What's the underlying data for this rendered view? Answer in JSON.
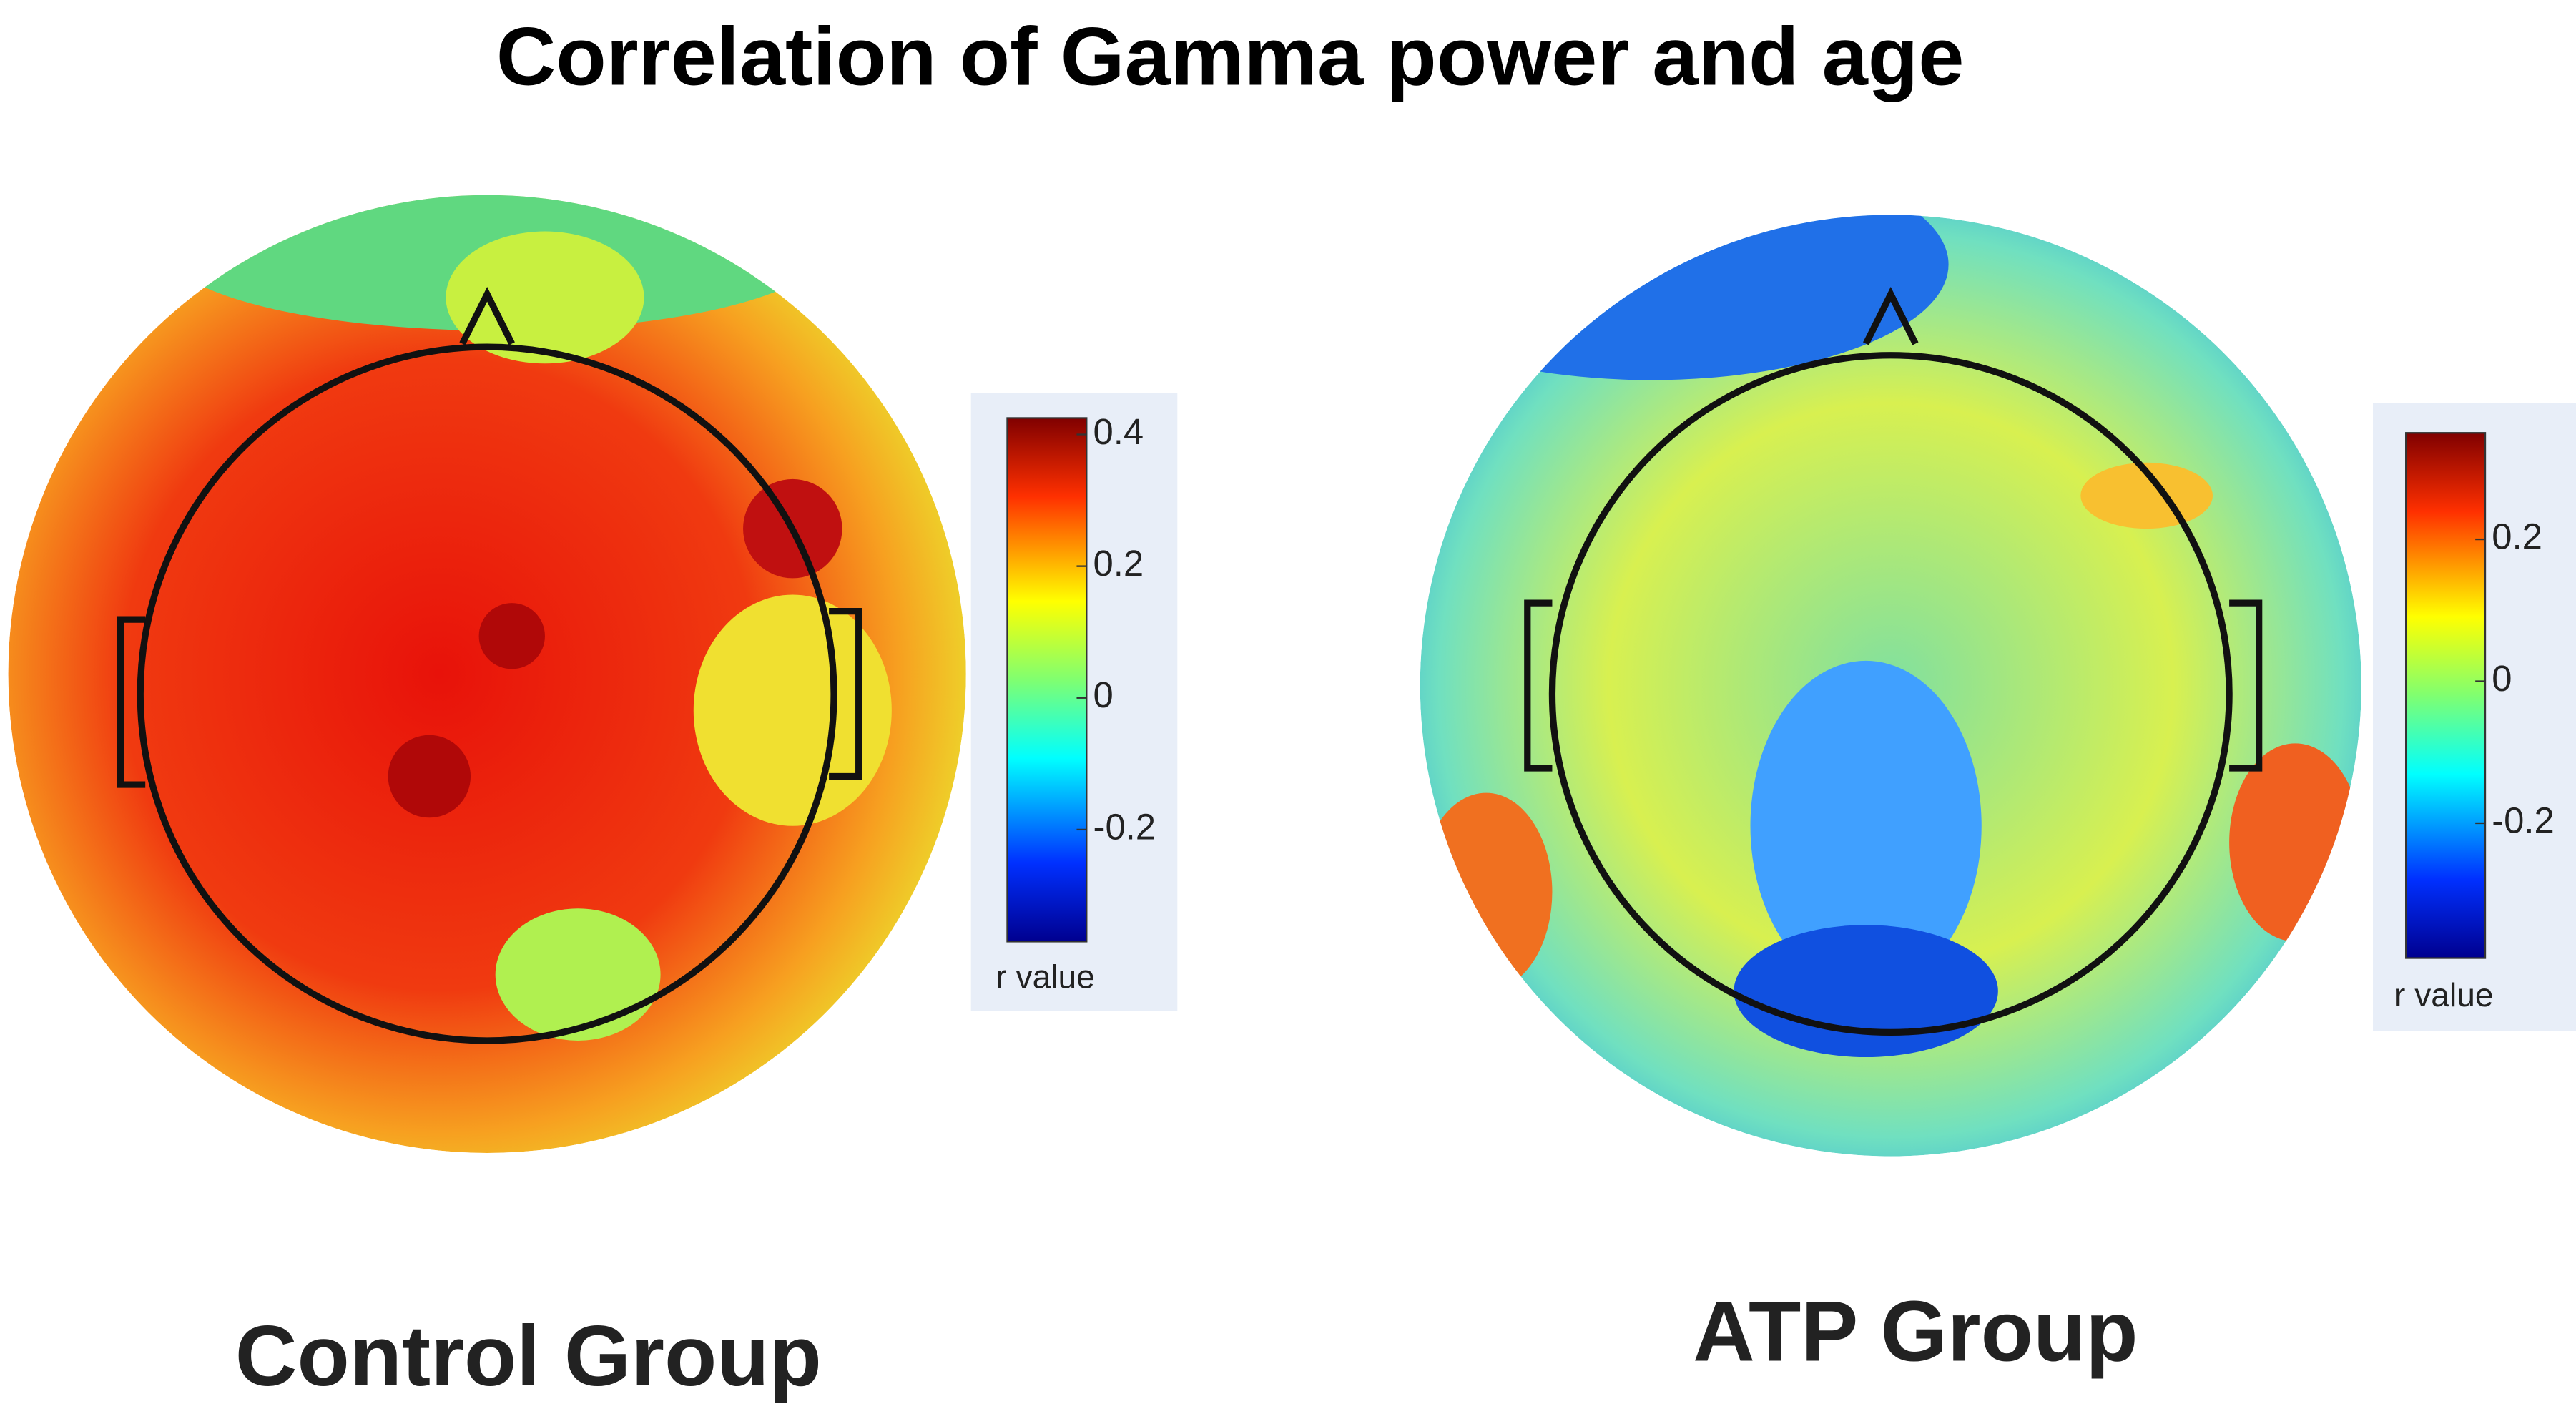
{
  "title": "Correlation of Gamma power and age",
  "chart_data": [
    {
      "type": "heatmap",
      "title": "Control Group",
      "colorbar_label": "r value",
      "clim": [
        -0.37,
        0.425
      ],
      "ticks": [
        0.4,
        0.2,
        0,
        -0.2
      ]
    },
    {
      "type": "heatmap",
      "title": "ATP Group",
      "colorbar_label": "r value",
      "clim": [
        -0.39,
        0.35
      ],
      "ticks": [
        0.2,
        0,
        -0.2
      ]
    }
  ]
}
